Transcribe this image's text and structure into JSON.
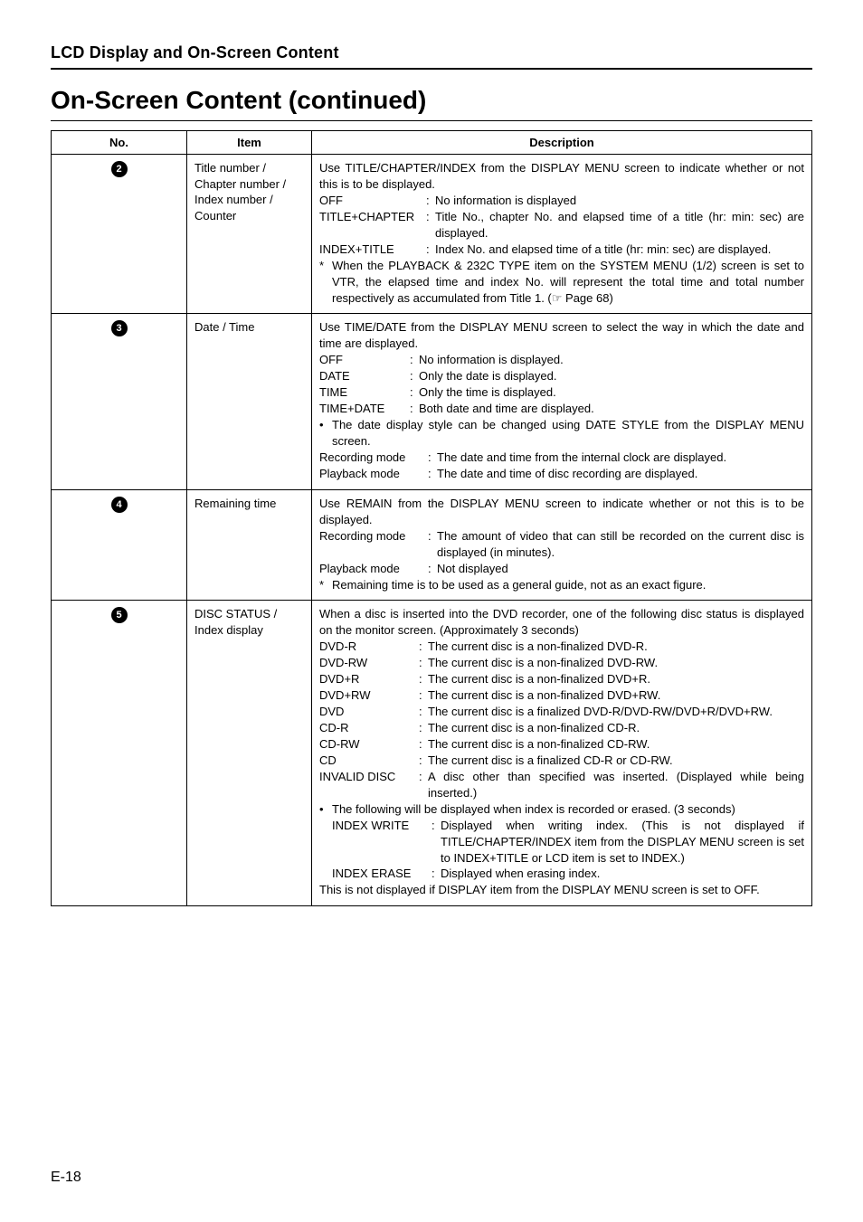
{
  "sectionHeader": "LCD Display and On-Screen Content",
  "pageTitle": "On-Screen Content (continued)",
  "columns": {
    "no": "No.",
    "item": "Item",
    "desc": "Description"
  },
  "footer": "E-18",
  "rows": [
    {
      "num": "2",
      "item": "Title number / Chapter number / Index number / Counter",
      "intro": "Use TITLE/CHAPTER/INDEX from the DISPLAY MENU screen to indicate whether or not this is to be displayed.",
      "defs": [
        {
          "label": "OFF",
          "val": "No information is displayed"
        },
        {
          "label": "TITLE+CHAPTER",
          "val": "Title No., chapter No. and elapsed time of a title (hr: min: sec) are displayed."
        },
        {
          "label": "INDEX+TITLE",
          "val": "Index No. and elapsed time of a title (hr: min: sec) are displayed."
        }
      ],
      "note": "When the PLAYBACK & 232C TYPE item on the SYSTEM MENU (1/2) screen is set to VTR, the elapsed time and index No. will represent the total time and total number respectively as accumulated from Title 1. (☞ Page 68)"
    },
    {
      "num": "3",
      "item": "Date / Time",
      "intro": "Use TIME/DATE from the DISPLAY MENU screen to select the way in which the date and time are displayed.",
      "defs": [
        {
          "label": "OFF",
          "val": "No information is displayed."
        },
        {
          "label": "DATE",
          "val": "Only the date is displayed."
        },
        {
          "label": "TIME",
          "val": "Only the time is displayed."
        },
        {
          "label": "TIME+DATE",
          "val": "Both date and time are displayed."
        }
      ],
      "bullet": "The date display style can be changed using DATE STYLE from the DISPLAY MENU screen.",
      "defs2": [
        {
          "label": "Recording mode",
          "val": "The date and time from the internal clock are displayed."
        },
        {
          "label": "Playback mode",
          "val": "The date and time of disc recording are displayed."
        }
      ]
    },
    {
      "num": "4",
      "item": "Remaining time",
      "intro": "Use REMAIN from the DISPLAY MENU screen to indicate whether or not this is to be displayed.",
      "defs": [
        {
          "label": "Recording mode",
          "val": "The amount of video that can still be recorded on the current disc is displayed (in minutes)."
        },
        {
          "label": "Playback mode",
          "val": "Not displayed"
        }
      ],
      "note": "Remaining time is to be used as a general guide, not as an exact figure."
    },
    {
      "num": "5",
      "item": "DISC STATUS / Index display",
      "intro": "When a disc is inserted into the DVD recorder, one of the following disc status is displayed on the monitor screen. (Approximately 3 seconds)",
      "defs": [
        {
          "label": "DVD-R",
          "val": "The current disc is a non-finalized DVD-R."
        },
        {
          "label": "DVD-RW",
          "val": "The current disc is a non-finalized DVD-RW."
        },
        {
          "label": "DVD+R",
          "val": "The current disc is a non-finalized DVD+R."
        },
        {
          "label": "DVD+RW",
          "val": "The current disc is a non-finalized DVD+RW."
        },
        {
          "label": "DVD",
          "val": "The current disc is a finalized DVD-R/DVD-RW/DVD+R/DVD+RW."
        },
        {
          "label": "CD-R",
          "val": "The current disc is a non-finalized CD-R."
        },
        {
          "label": "CD-RW",
          "val": "The current disc is a non-finalized CD-RW."
        },
        {
          "label": "CD",
          "val": "The current disc is a finalized CD-R or CD-RW."
        },
        {
          "label": "INVALID DISC",
          "val": "A disc other than specified was inserted. (Displayed while being inserted.)"
        }
      ],
      "bullet": "The following will be displayed when index is recorded or erased. (3 seconds)",
      "defs2": [
        {
          "label": "INDEX WRITE",
          "val": "Displayed when writing index. (This is not displayed if TITLE/CHAPTER/INDEX item from the DISPLAY MENU screen is set to INDEX+TITLE or LCD item is set to INDEX.)"
        },
        {
          "label": "INDEX ERASE",
          "val": "Displayed when erasing index."
        }
      ],
      "tail": "This is not displayed if DISPLAY item from the DISPLAY MENU screen is set to OFF."
    }
  ]
}
